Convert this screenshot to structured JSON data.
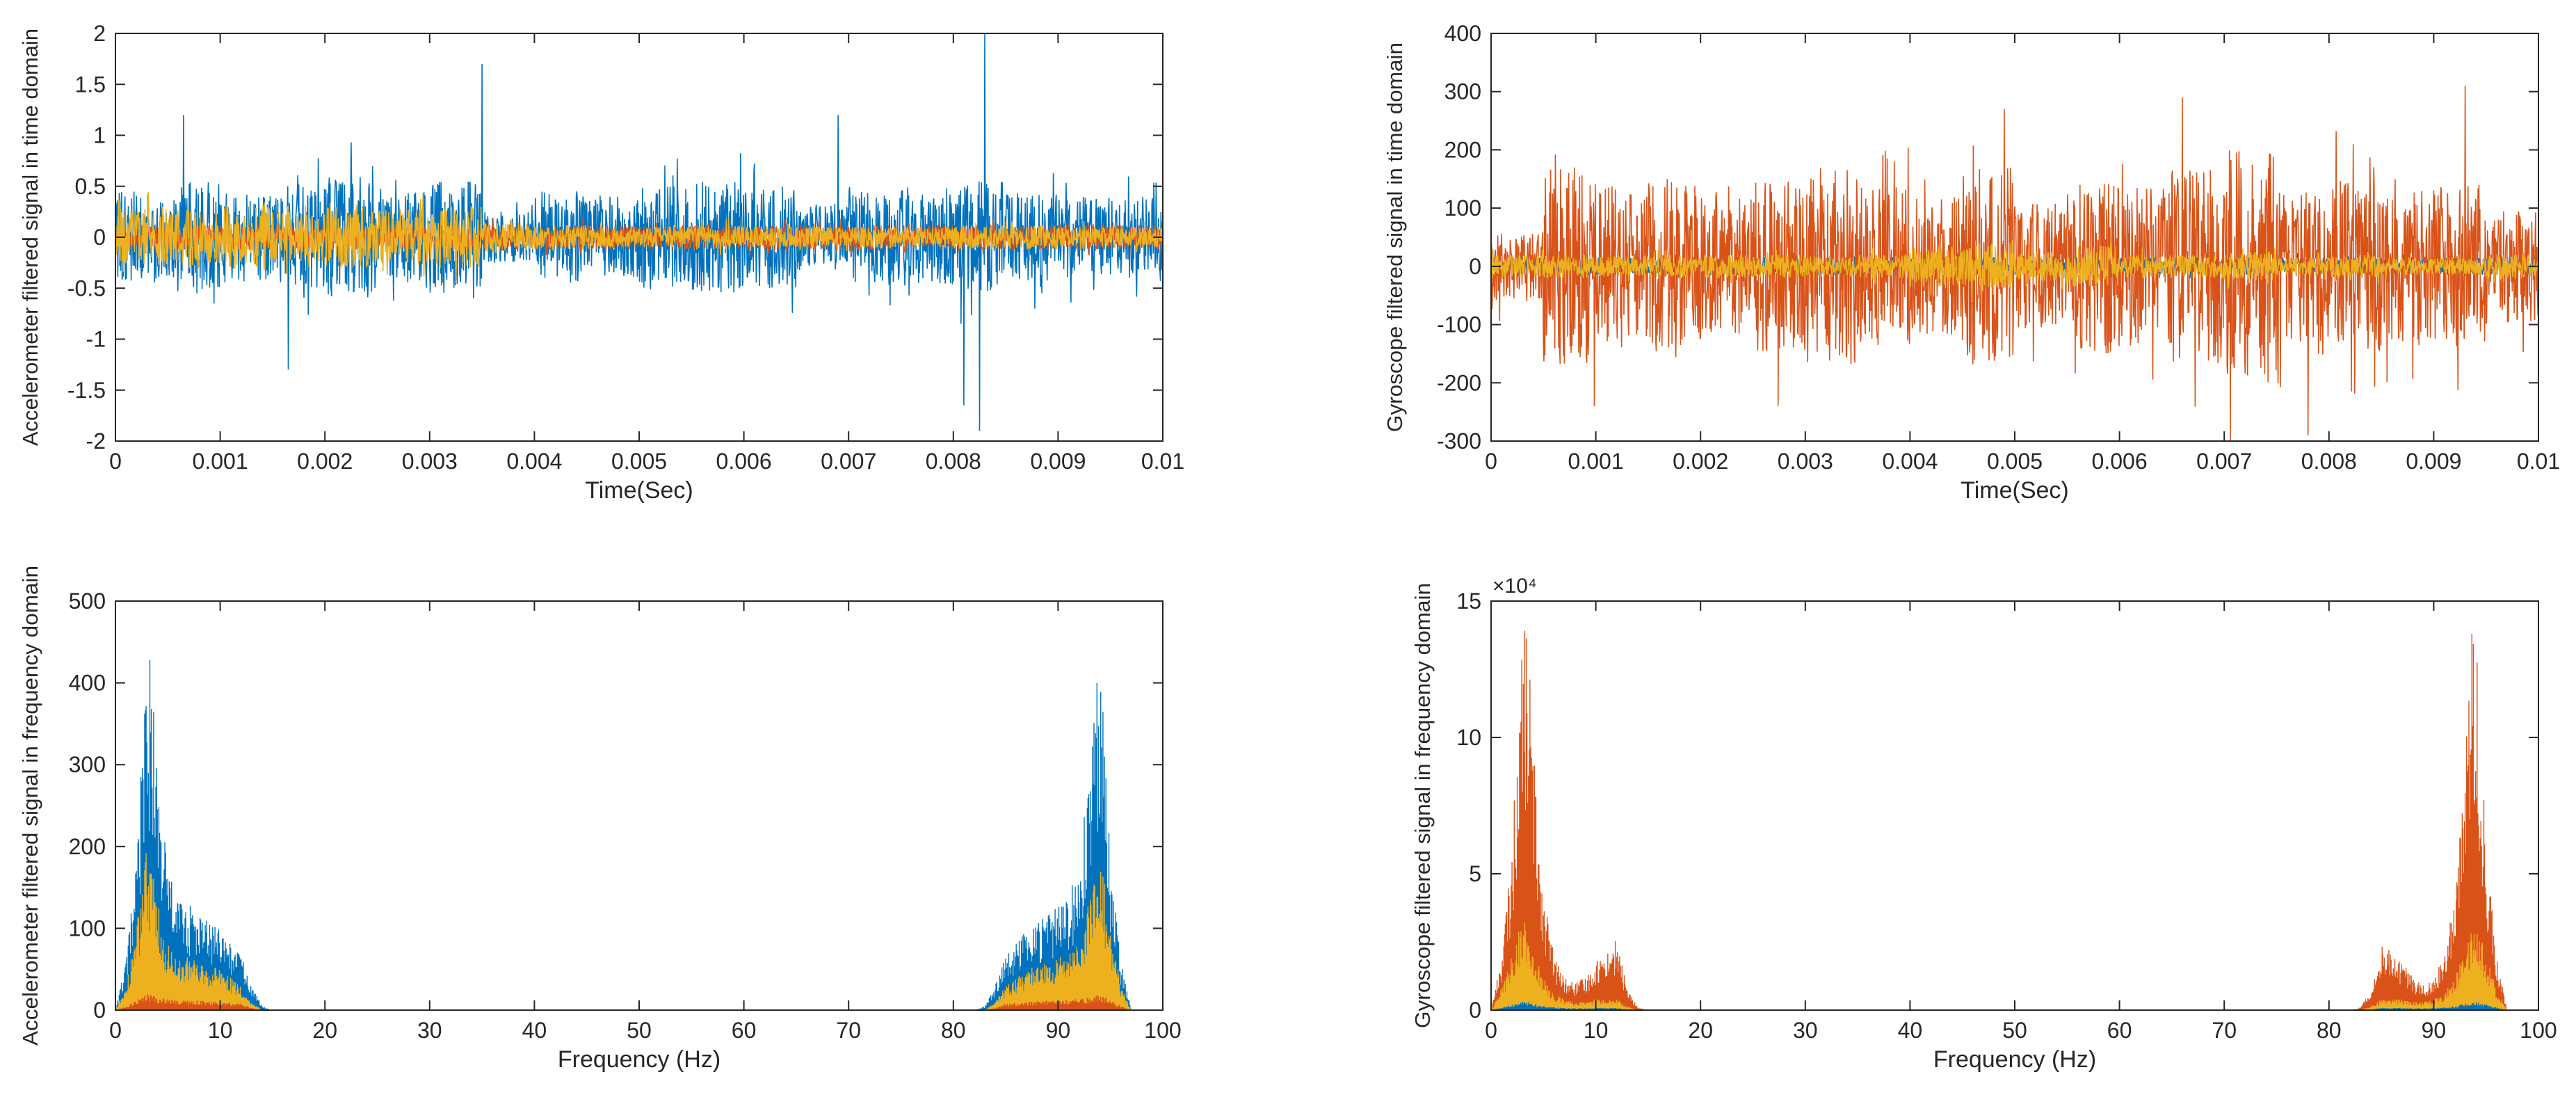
{
  "colors": {
    "blue": "#0072BD",
    "orange": "#D95319",
    "yellow": "#EDB120",
    "axis": "#262626"
  },
  "chart_data": [
    {
      "id": "accel-time",
      "type": "line",
      "title": "",
      "xlabel": "Time(Sec)",
      "ylabel": "Accelerometer filtered signal in time domain",
      "xlim": [
        0,
        0.01
      ],
      "ylim": [
        -2,
        2
      ],
      "xticks": [
        "0",
        "0.001",
        "0.002",
        "0.003",
        "0.004",
        "0.005",
        "0.006",
        "0.007",
        "0.008",
        "0.009",
        "0.01"
      ],
      "yticks": [
        "-2",
        "-1.5",
        "-1",
        "-0.5",
        "0",
        "0.5",
        "1",
        "1.5",
        "2"
      ],
      "exponent_label": "",
      "series": [
        {
          "name": "blue",
          "color": "#0072BD",
          "amplitude": [
            0.45,
            0.55,
            0.45,
            0.5,
            0.6,
            0.45,
            0.55,
            0.25,
            0.45,
            0.4,
            0.5,
            0.55,
            0.5,
            0.35,
            0.45,
            0.5,
            0.55,
            0.45,
            0.4,
            0.4
          ],
          "spikes": [
            [
              0.0035,
              1.7
            ],
            [
              0.00165,
              -1.3
            ],
            [
              0.0083,
              2.0
            ],
            [
              0.00825,
              -1.9
            ],
            [
              0.0081,
              -1.65
            ],
            [
              0.0069,
              1.2
            ],
            [
              0.00065,
              1.2
            ]
          ]
        },
        {
          "name": "orange",
          "color": "#D95319",
          "amplitude": [
            0.12,
            0.12,
            0.12,
            0.12,
            0.12,
            0.12,
            0.12,
            0.12,
            0.12,
            0.12,
            0.12,
            0.12,
            0.12,
            0.12,
            0.12,
            0.12,
            0.12,
            0.12,
            0.12,
            0.12
          ],
          "spikes": []
        },
        {
          "name": "yellow",
          "color": "#EDB120",
          "amplitude": [
            0.28,
            0.3,
            0.32,
            0.25,
            0.3,
            0.28,
            0.3,
            0.15,
            0.12,
            0.1,
            0.1,
            0.12,
            0.1,
            0.1,
            0.1,
            0.1,
            0.12,
            0.12,
            0.1,
            0.1
          ],
          "spikes": []
        }
      ]
    },
    {
      "id": "gyro-time",
      "type": "line",
      "title": "",
      "xlabel": "Time(Sec)",
      "ylabel": "Gyroscope filtered signal in time domain",
      "xlim": [
        0,
        0.01
      ],
      "ylim": [
        -300,
        400
      ],
      "xticks": [
        "0",
        "0.001",
        "0.002",
        "0.003",
        "0.004",
        "0.005",
        "0.006",
        "0.007",
        "0.008",
        "0.009",
        "0.01"
      ],
      "yticks": [
        "-300",
        "-200",
        "-100",
        "0",
        "100",
        "200",
        "300",
        "400"
      ],
      "exponent_label": "",
      "series": [
        {
          "name": "blue",
          "color": "#0072BD",
          "amplitude": [
            15,
            15,
            15,
            15,
            15,
            15,
            15,
            15,
            15,
            15,
            15,
            15,
            15,
            15,
            15,
            15,
            15,
            15,
            15,
            15
          ],
          "spikes": []
        },
        {
          "name": "orange",
          "color": "#D95319",
          "amplitude": [
            60,
            170,
            140,
            150,
            130,
            150,
            170,
            140,
            120,
            170,
            110,
            150,
            140,
            170,
            200,
            130,
            150,
            130,
            140,
            100
          ],
          "spikes": [
            [
              0.0078,
              -290
            ],
            [
              0.0093,
              310
            ],
            [
              0.0066,
              290
            ],
            [
              0.0049,
              270
            ]
          ]
        },
        {
          "name": "yellow",
          "color": "#EDB120",
          "amplitude": [
            20,
            20,
            18,
            18,
            20,
            20,
            18,
            20,
            35,
            40,
            25,
            35,
            20,
            20,
            25,
            15,
            20,
            15,
            15,
            20
          ],
          "spikes": []
        }
      ]
    },
    {
      "id": "accel-freq",
      "type": "area",
      "title": "",
      "xlabel": "Frequency (Hz)",
      "ylabel": "Accelerometer filtered signal in frequency domain",
      "xlim": [
        0,
        100
      ],
      "ylim": [
        0,
        500
      ],
      "xticks": [
        "0",
        "10",
        "20",
        "30",
        "40",
        "50",
        "60",
        "70",
        "80",
        "90",
        "100"
      ],
      "yticks": [
        "0",
        "100",
        "200",
        "300",
        "400",
        "500"
      ],
      "exponent_label": "",
      "series": [
        {
          "name": "blue",
          "color": "#0072BD",
          "x": [
            0,
            1,
            2,
            3,
            3.5,
            4,
            5,
            6,
            7,
            8,
            9,
            10,
            11,
            12,
            13,
            14,
            15,
            100
          ],
          "envelope": [
            0,
            60,
            180,
            440,
            420,
            300,
            180,
            140,
            130,
            120,
            110,
            100,
            85,
            70,
            30,
            5,
            0,
            0
          ]
        },
        {
          "name": "yellow",
          "color": "#EDB120",
          "x": [
            0,
            1,
            2,
            3,
            3.5,
            4,
            5,
            6,
            7,
            8,
            9,
            10,
            11,
            12,
            13,
            14,
            15,
            100
          ],
          "envelope": [
            0,
            30,
            100,
            200,
            180,
            140,
            80,
            70,
            65,
            60,
            55,
            50,
            40,
            30,
            10,
            0,
            0,
            0
          ]
        },
        {
          "name": "orange",
          "color": "#D95319",
          "x": [
            0,
            1,
            2,
            3,
            3.5,
            4,
            5,
            6,
            7,
            8,
            9,
            10,
            11,
            12,
            13,
            14,
            15,
            100
          ],
          "envelope": [
            0,
            5,
            12,
            20,
            18,
            16,
            14,
            13,
            12,
            12,
            11,
            10,
            9,
            8,
            3,
            0,
            0,
            0
          ]
        }
      ]
    },
    {
      "id": "gyro-freq",
      "type": "area",
      "title": "",
      "xlabel": "Frequency (Hz)",
      "ylabel": "Gyroscope filtered signal in frequency domain",
      "xlim": [
        0,
        100
      ],
      "ylim": [
        0,
        150000
      ],
      "xticks": [
        "0",
        "10",
        "20",
        "30",
        "40",
        "50",
        "60",
        "70",
        "80",
        "90",
        "100"
      ],
      "yticks": [
        "0",
        "5",
        "10",
        "15"
      ],
      "exponent_label": "×10⁴",
      "series": [
        {
          "name": "orange",
          "color": "#D95319",
          "x": [
            0,
            1,
            2,
            3,
            3.5,
            4,
            5,
            6,
            7,
            8,
            9,
            10,
            11,
            12,
            13,
            14,
            15,
            100
          ],
          "envelope": [
            0,
            20000,
            60000,
            140000,
            143000,
            100000,
            45000,
            20000,
            12000,
            10000,
            12000,
            18000,
            22000,
            26000,
            8000,
            1000,
            0,
            0
          ]
        },
        {
          "name": "yellow",
          "color": "#EDB120",
          "x": [
            0,
            1,
            2,
            3,
            3.5,
            4,
            5,
            6,
            7,
            8,
            9,
            10,
            11,
            12,
            13,
            14,
            15,
            100
          ],
          "envelope": [
            0,
            8000,
            20000,
            35000,
            30000,
            25000,
            12000,
            6000,
            4000,
            3000,
            3000,
            4000,
            4000,
            4000,
            1500,
            0,
            0,
            0
          ]
        },
        {
          "name": "blue",
          "color": "#0072BD",
          "x": [
            0,
            1,
            2,
            3,
            3.5,
            4,
            5,
            6,
            7,
            8,
            9,
            10,
            11,
            12,
            13,
            14,
            15,
            100
          ],
          "envelope": [
            0,
            1000,
            2000,
            3000,
            3000,
            2500,
            1500,
            1000,
            800,
            700,
            700,
            800,
            800,
            800,
            300,
            0,
            0,
            0
          ]
        }
      ]
    }
  ]
}
